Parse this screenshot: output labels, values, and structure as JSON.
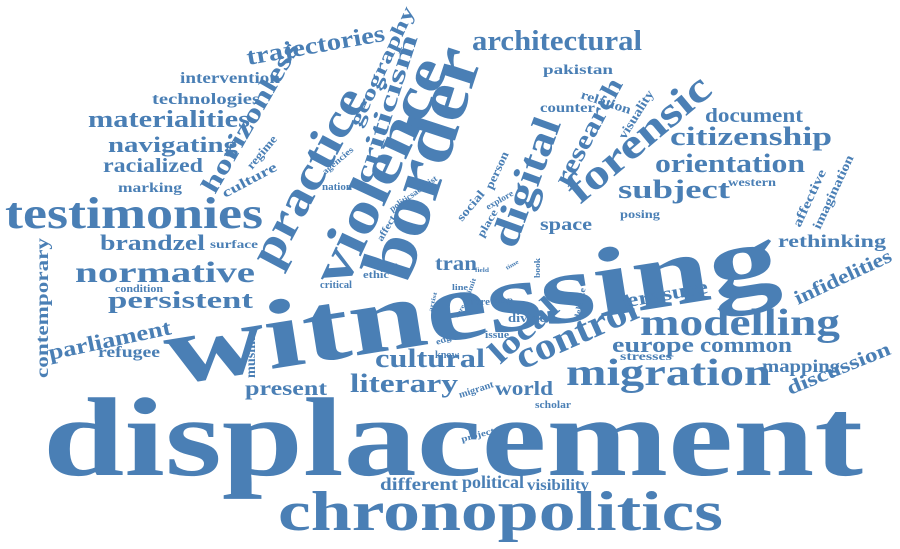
{
  "colors": {
    "word": "#4a7fb5",
    "background": "#ffffff"
  },
  "words": [
    "displacement",
    "witnessing",
    "chronopolitics",
    "border",
    "violence",
    "practice",
    "testimonies",
    "forensic",
    "digital",
    "migration",
    "modelling",
    "control",
    "local",
    "normative",
    "research",
    "architectural",
    "citizenship",
    "orientation",
    "subject",
    "criticism",
    "horizonless",
    "literary",
    "cultural",
    "trajectories",
    "materialities",
    "navigating",
    "geography",
    "brandzel",
    "persistent",
    "parliament",
    "europe",
    "common",
    "erasure",
    "infidelities",
    "discussion",
    "mapping",
    "document",
    "rethinking",
    "present",
    "world",
    "different",
    "political",
    "visibility",
    "contemporary",
    "refugee",
    "racialized",
    "technologies",
    "intervention",
    "marking",
    "culture",
    "regime",
    "pakistan",
    "relation",
    "counter",
    "visuality",
    "affective",
    "imagination",
    "western",
    "space",
    "posing",
    "muslim",
    "tran",
    "surface",
    "condition",
    "divide",
    "stresses",
    "scholar",
    "migrant",
    "project",
    "person",
    "social",
    "place",
    "explore",
    "politicsactivist",
    "affect",
    "agencies",
    "nation",
    "form",
    "ethic",
    "critical",
    "field",
    "time",
    "book",
    "deleuze",
    "line",
    "limit",
    "care",
    "artist",
    "more",
    "map",
    "issue",
    "edge",
    "know"
  ]
}
